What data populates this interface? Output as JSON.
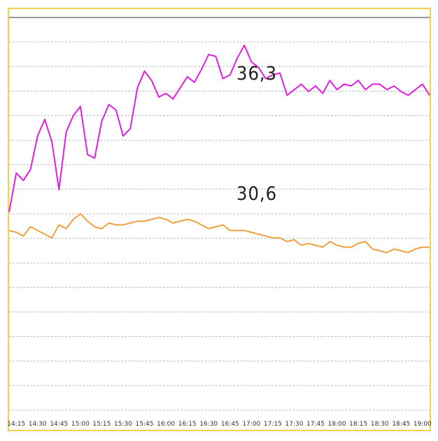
{
  "chart_data": {
    "type": "line",
    "x": [
      "14:10",
      "14:15",
      "14:20",
      "14:25",
      "14:30",
      "14:35",
      "14:40",
      "14:45",
      "14:50",
      "14:55",
      "15:00",
      "15:05",
      "15:10",
      "15:15",
      "15:20",
      "15:25",
      "15:30",
      "15:35",
      "15:40",
      "15:45",
      "15:50",
      "15:55",
      "16:00",
      "16:05",
      "16:10",
      "16:15",
      "16:20",
      "16:25",
      "16:30",
      "16:35",
      "16:40",
      "16:45",
      "16:50",
      "16:55",
      "17:00",
      "17:05",
      "17:10",
      "17:15",
      "17:20",
      "17:25",
      "17:30",
      "17:35",
      "17:40",
      "17:45",
      "17:50",
      "17:55",
      "18:00",
      "18:05",
      "18:10",
      "18:15",
      "18:20",
      "18:25",
      "18:30",
      "18:35",
      "18:40",
      "18:45",
      "18:50",
      "18:55",
      "19:00",
      "19:05"
    ],
    "x_ticks": [
      "14:15",
      "14:30",
      "14:45",
      "15:00",
      "15:15",
      "15:30",
      "15:45",
      "16:00",
      "16:15",
      "16:30",
      "16:45",
      "17:00",
      "17:15",
      "17:30",
      "17:45",
      "18:00",
      "18:15",
      "18:30",
      "18:45",
      "19:00"
    ],
    "series": [
      {
        "color": "#e020e0",
        "values": [
          11.5,
          13.6,
          13.2,
          13.8,
          15.6,
          16.5,
          15.3,
          12.7,
          15.8,
          16.7,
          17.2,
          14.6,
          14.4,
          16.4,
          17.3,
          17.0,
          15.6,
          16.0,
          18.2,
          19.1,
          18.6,
          17.7,
          17.9,
          17.6,
          18.2,
          18.8,
          18.5,
          19.2,
          20.0,
          19.9,
          18.7,
          18.9,
          19.8,
          20.5,
          19.6,
          19.3,
          18.7,
          18.9,
          19.0,
          17.8,
          18.1,
          18.4,
          18.0,
          18.3,
          17.9,
          18.6,
          18.1,
          18.4,
          18.3,
          18.6,
          18.1,
          18.4,
          18.4,
          18.1,
          18.3,
          18.0,
          17.8,
          18.1,
          18.4,
          17.8
        ]
      },
      {
        "color": "#f0a040",
        "values": [
          10.5,
          10.4,
          10.2,
          10.7,
          10.5,
          10.3,
          10.1,
          10.8,
          10.6,
          11.1,
          11.4,
          11.0,
          10.7,
          10.6,
          10.9,
          10.8,
          10.8,
          10.9,
          11.0,
          11.0,
          11.1,
          11.2,
          11.1,
          10.9,
          11.0,
          11.1,
          11.0,
          10.8,
          10.6,
          10.7,
          10.8,
          10.5,
          10.5,
          10.5,
          10.4,
          10.3,
          10.2,
          10.1,
          10.1,
          9.9,
          10.0,
          9.7,
          9.8,
          9.7,
          9.6,
          9.9,
          9.7,
          9.6,
          9.6,
          9.8,
          9.9,
          9.5,
          9.4,
          9.3,
          9.5,
          9.4,
          9.3,
          9.5,
          9.6,
          9.6
        ]
      }
    ],
    "ylim": [
      0,
      22
    ],
    "grid": true,
    "annotations": [
      "36,3",
      "30,6"
    ]
  },
  "colors": {
    "frame": "#f2d14a",
    "grid": "#bdbdbd",
    "top_line": "#333333"
  }
}
